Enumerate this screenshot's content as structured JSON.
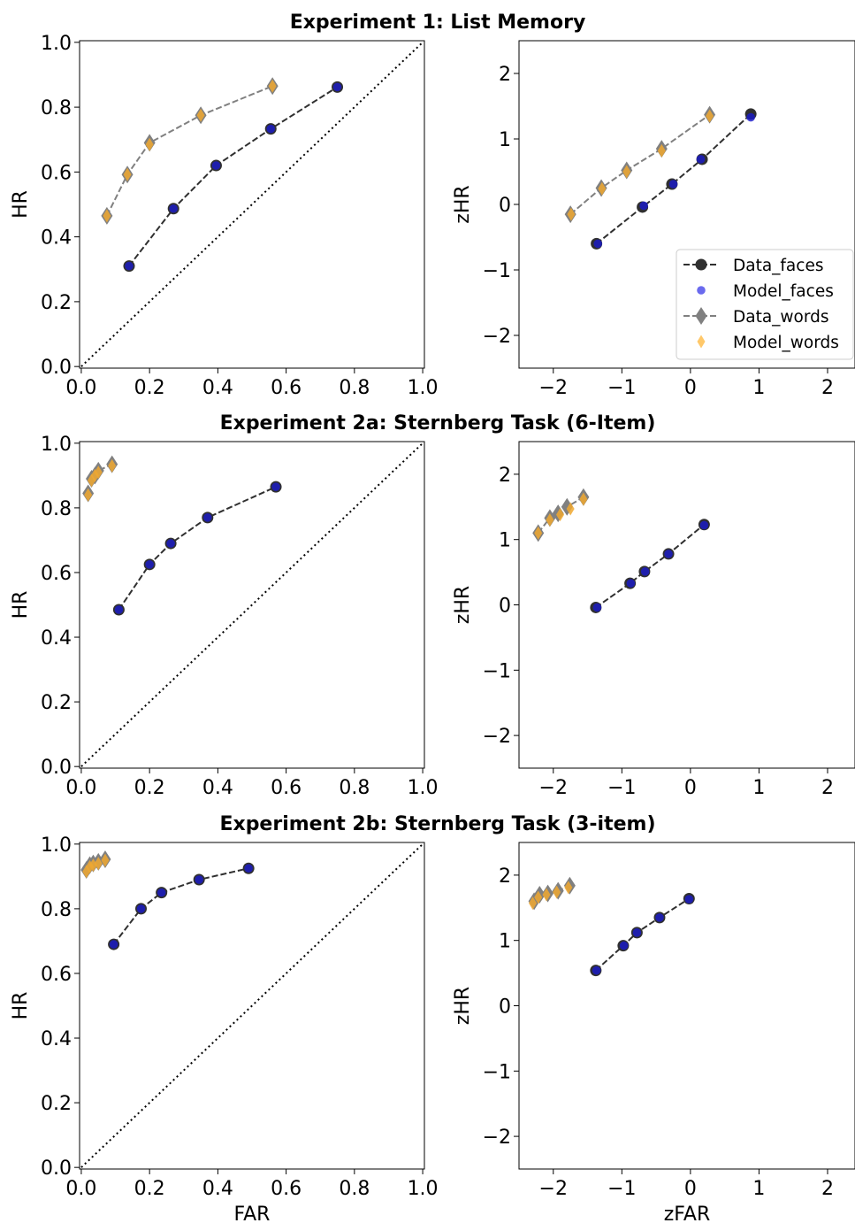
{
  "legend": {
    "entries": [
      {
        "key": "data_faces",
        "label": "Data_faces"
      },
      {
        "key": "model_faces",
        "label": "Model_faces"
      },
      {
        "key": "data_words",
        "label": "Data_words"
      },
      {
        "key": "model_words",
        "label": "Model_words"
      }
    ]
  },
  "colors": {
    "data_faces_marker": "#303030",
    "data_faces_line": "#303030",
    "model_faces": "#1a1acc",
    "model_faces_legend": "#6a6aee",
    "data_words_marker": "#808080",
    "data_words_line": "#808080",
    "model_words": "#f0a830",
    "model_words_legend": "#ffc86a"
  },
  "row_titles": [
    "Experiment 1: List Memory",
    "Experiment 2a: Sternberg Task (6-Item)",
    "Experiment 2b: Sternberg Task (3-item)"
  ],
  "chart_data": [
    {
      "type": "line",
      "row": 0,
      "col": 0,
      "kind": "roc",
      "title": "Experiment 1: List Memory",
      "xlabel": "",
      "ylabel": "HR",
      "xlim": [
        -0.005,
        1.005
      ],
      "ylim": [
        -0.005,
        1.005
      ],
      "xticks": [
        "0.0",
        "0.2",
        "0.4",
        "0.6",
        "0.8",
        "1.0"
      ],
      "yticks": [
        "0.0",
        "0.2",
        "0.4",
        "0.6",
        "0.8",
        "1.0"
      ],
      "diagonal": true,
      "series": [
        {
          "name": "Data_faces",
          "x": [
            0.14,
            0.27,
            0.395,
            0.555,
            0.75
          ],
          "y": [
            0.31,
            0.487,
            0.62,
            0.733,
            0.862
          ]
        },
        {
          "name": "Model_faces",
          "x": [
            0.14,
            0.27,
            0.395,
            0.555,
            0.75
          ],
          "y": [
            0.31,
            0.487,
            0.62,
            0.733,
            0.862
          ]
        },
        {
          "name": "Data_words",
          "x": [
            0.075,
            0.135,
            0.2,
            0.35,
            0.56
          ],
          "y": [
            0.465,
            0.592,
            0.69,
            0.775,
            0.865
          ]
        },
        {
          "name": "Model_words",
          "x": [
            0.075,
            0.135,
            0.2,
            0.35,
            0.56
          ],
          "y": [
            0.465,
            0.592,
            0.685,
            0.775,
            0.865
          ]
        }
      ]
    },
    {
      "type": "line",
      "row": 0,
      "col": 1,
      "kind": "z",
      "title": "Experiment 1: List Memory",
      "xlabel": "",
      "ylabel": "zHR",
      "xlim": [
        -2.5,
        2.4
      ],
      "ylim": [
        -2.5,
        2.5
      ],
      "xticks": [
        "−2",
        "−1",
        "0",
        "1",
        "2"
      ],
      "yticks": [
        "−2",
        "−1",
        "0",
        "1",
        "2"
      ],
      "legend": "lower right",
      "series": [
        {
          "name": "Data_faces",
          "x": [
            -1.37,
            -0.7,
            -0.27,
            0.17,
            0.88
          ],
          "y": [
            -0.6,
            -0.04,
            0.31,
            0.69,
            1.38
          ]
        },
        {
          "name": "Model_faces",
          "x": [
            -1.35,
            -0.68,
            -0.25,
            0.15,
            0.88
          ],
          "y": [
            -0.6,
            -0.02,
            0.31,
            0.69,
            1.33
          ]
        },
        {
          "name": "Data_words",
          "x": [
            -1.75,
            -1.3,
            -0.93,
            -0.42,
            0.28
          ],
          "y": [
            -0.15,
            0.25,
            0.52,
            0.85,
            1.37
          ]
        },
        {
          "name": "Model_words",
          "x": [
            -1.74,
            -1.29,
            -0.93,
            -0.42,
            0.28
          ],
          "y": [
            -0.15,
            0.24,
            0.5,
            0.82,
            1.35
          ]
        }
      ]
    },
    {
      "type": "line",
      "row": 1,
      "col": 0,
      "kind": "roc",
      "title": "Experiment 2a: Sternberg Task (6-Item)",
      "xlabel": "",
      "ylabel": "HR",
      "xlim": [
        -0.005,
        1.005
      ],
      "ylim": [
        -0.005,
        1.005
      ],
      "xticks": [
        "0.0",
        "0.2",
        "0.4",
        "0.6",
        "0.8",
        "1.0"
      ],
      "yticks": [
        "0.0",
        "0.2",
        "0.4",
        "0.6",
        "0.8",
        "1.0"
      ],
      "diagonal": true,
      "series": [
        {
          "name": "Data_faces",
          "x": [
            0.11,
            0.2,
            0.262,
            0.37,
            0.57
          ],
          "y": [
            0.485,
            0.625,
            0.69,
            0.77,
            0.865
          ]
        },
        {
          "name": "Model_faces",
          "x": [
            0.11,
            0.2,
            0.262,
            0.37,
            0.57
          ],
          "y": [
            0.485,
            0.625,
            0.69,
            0.77,
            0.865
          ]
        },
        {
          "name": "Data_words",
          "x": [
            0.02,
            0.03,
            0.04,
            0.05,
            0.09
          ],
          "y": [
            0.845,
            0.89,
            0.9,
            0.915,
            0.935
          ]
        },
        {
          "name": "Model_words",
          "x": [
            0.02,
            0.03,
            0.04,
            0.05,
            0.09
          ],
          "y": [
            0.84,
            0.885,
            0.9,
            0.91,
            0.93
          ]
        }
      ]
    },
    {
      "type": "line",
      "row": 1,
      "col": 1,
      "kind": "z",
      "title": "Experiment 2a: Sternberg Task (6-Item)",
      "xlabel": "",
      "ylabel": "zHR",
      "xlim": [
        -2.5,
        2.4
      ],
      "ylim": [
        -2.5,
        2.5
      ],
      "xticks": [
        "−2",
        "−1",
        "0",
        "1",
        "2"
      ],
      "yticks": [
        "−2",
        "−1",
        "0",
        "1",
        "2"
      ],
      "series": [
        {
          "name": "Data_faces",
          "x": [
            -1.38,
            -0.88,
            -0.67,
            -0.32,
            0.2
          ],
          "y": [
            -0.04,
            0.33,
            0.51,
            0.78,
            1.23
          ]
        },
        {
          "name": "Model_faces",
          "x": [
            -1.36,
            -0.87,
            -0.66,
            -0.32,
            0.2
          ],
          "y": [
            -0.04,
            0.33,
            0.51,
            0.78,
            1.22
          ]
        },
        {
          "name": "Data_words",
          "x": [
            -2.22,
            -2.05,
            -1.93,
            -1.8,
            -1.56
          ],
          "y": [
            1.1,
            1.33,
            1.4,
            1.5,
            1.65
          ]
        },
        {
          "name": "Model_words",
          "x": [
            -2.22,
            -2.05,
            -1.9,
            -1.75,
            -1.56
          ],
          "y": [
            1.1,
            1.3,
            1.38,
            1.47,
            1.62
          ]
        }
      ]
    },
    {
      "type": "line",
      "row": 2,
      "col": 0,
      "kind": "roc",
      "title": "Experiment 2b: Sternberg Task (3-item)",
      "xlabel": "FAR",
      "ylabel": "HR",
      "xlim": [
        -0.005,
        1.005
      ],
      "ylim": [
        -0.005,
        1.005
      ],
      "xticks": [
        "0.0",
        "0.2",
        "0.4",
        "0.6",
        "0.8",
        "1.0"
      ],
      "yticks": [
        "0.0",
        "0.2",
        "0.4",
        "0.6",
        "0.8",
        "1.0"
      ],
      "diagonal": true,
      "series": [
        {
          "name": "Data_faces",
          "x": [
            0.095,
            0.175,
            0.235,
            0.345,
            0.49
          ],
          "y": [
            0.69,
            0.8,
            0.85,
            0.89,
            0.925
          ]
        },
        {
          "name": "Model_faces",
          "x": [
            0.095,
            0.175,
            0.235,
            0.345,
            0.49
          ],
          "y": [
            0.69,
            0.8,
            0.85,
            0.89,
            0.925
          ]
        },
        {
          "name": "Data_words",
          "x": [
            0.015,
            0.025,
            0.035,
            0.05,
            0.07
          ],
          "y": [
            0.92,
            0.935,
            0.94,
            0.945,
            0.953
          ]
        },
        {
          "name": "Model_words",
          "x": [
            0.015,
            0.025,
            0.035,
            0.05,
            0.07
          ],
          "y": [
            0.915,
            0.93,
            0.935,
            0.94,
            0.95
          ]
        }
      ]
    },
    {
      "type": "line",
      "row": 2,
      "col": 1,
      "kind": "z",
      "title": "Experiment 2b: Sternberg Task (3-item)",
      "xlabel": "zFAR",
      "ylabel": "zHR",
      "xlim": [
        -2.5,
        2.4
      ],
      "ylim": [
        -2.5,
        2.5
      ],
      "xticks": [
        "−2",
        "−1",
        "0",
        "1",
        "2"
      ],
      "yticks": [
        "−2",
        "−1",
        "0",
        "1",
        "2"
      ],
      "series": [
        {
          "name": "Data_faces",
          "x": [
            -1.38,
            -0.98,
            -0.78,
            -0.45,
            -0.02
          ],
          "y": [
            0.54,
            0.92,
            1.12,
            1.35,
            1.64
          ]
        },
        {
          "name": "Model_faces",
          "x": [
            -1.37,
            -0.97,
            -0.78,
            -0.45,
            -0.02
          ],
          "y": [
            0.54,
            0.92,
            1.12,
            1.35,
            1.63
          ]
        },
        {
          "name": "Data_words",
          "x": [
            -2.28,
            -2.2,
            -2.08,
            -1.93,
            -1.76
          ],
          "y": [
            1.6,
            1.7,
            1.72,
            1.76,
            1.84
          ]
        },
        {
          "name": "Model_words",
          "x": [
            -2.3,
            -2.22,
            -2.1,
            -1.95,
            -1.78
          ],
          "y": [
            1.57,
            1.66,
            1.7,
            1.74,
            1.81
          ]
        }
      ]
    }
  ]
}
